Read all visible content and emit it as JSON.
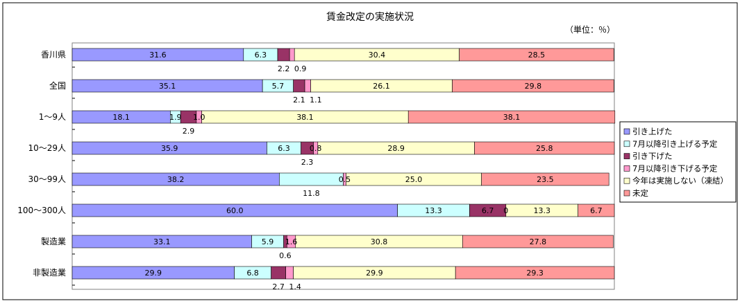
{
  "chart_data": {
    "type": "bar",
    "orientation": "horizontal",
    "stacked": true,
    "percent_stacked": true,
    "title": "賃金改定の実施状況",
    "unit_label": "（単位：％）",
    "xlim": [
      0,
      100
    ],
    "categories": [
      "香川県",
      "全国",
      "1～9人",
      "10～29人",
      "30～99人",
      "100～300人",
      "製造業",
      "非製造業"
    ],
    "series": [
      {
        "name": "引き上げた",
        "values": [
          31.6,
          35.1,
          18.1,
          35.9,
          38.2,
          60.0,
          33.1,
          29.9
        ]
      },
      {
        "name": "7月以降引き上げる予定",
        "values": [
          6.3,
          5.7,
          1.9,
          6.3,
          11.8,
          13.3,
          5.9,
          6.8
        ]
      },
      {
        "name": "引き下げた",
        "values": [
          2.2,
          2.1,
          2.9,
          2.3,
          0.0,
          6.7,
          0.6,
          2.7
        ]
      },
      {
        "name": "7月以降引き下げる予定",
        "values": [
          0.9,
          1.1,
          1.0,
          0.8,
          0.5,
          0.0,
          1.6,
          1.4
        ]
      },
      {
        "name": "今年は実施しない（凍結）",
        "values": [
          30.4,
          26.1,
          38.1,
          28.9,
          25.0,
          13.3,
          30.8,
          29.9
        ]
      },
      {
        "name": "未定",
        "values": [
          28.5,
          29.8,
          38.1,
          25.8,
          23.5,
          6.7,
          27.8,
          29.3
        ]
      }
    ],
    "data_labels": [
      [
        {
          "text": "31.6",
          "pos": "in"
        },
        {
          "text": "6.3",
          "pos": "in"
        },
        {
          "text": "2.2",
          "pos": "below"
        },
        {
          "text": "0.9",
          "pos": "below"
        },
        {
          "text": "30.4",
          "pos": "in"
        },
        {
          "text": "28.5",
          "pos": "in"
        }
      ],
      [
        {
          "text": "35.1",
          "pos": "in"
        },
        {
          "text": "5.7",
          "pos": "in"
        },
        {
          "text": "2.1",
          "pos": "below"
        },
        {
          "text": "1.1",
          "pos": "below"
        },
        {
          "text": "26.1",
          "pos": "in"
        },
        {
          "text": "29.8",
          "pos": "in"
        }
      ],
      [
        {
          "text": "18.1",
          "pos": "in"
        },
        {
          "text": "1.9",
          "pos": "in"
        },
        {
          "text": "2.9",
          "pos": "below"
        },
        {
          "text": "1.0",
          "pos": "in"
        },
        {
          "text": "38.1",
          "pos": "in"
        },
        {
          "text": "38.1",
          "pos": "in"
        }
      ],
      [
        {
          "text": "35.9",
          "pos": "in"
        },
        {
          "text": "6.3",
          "pos": "in"
        },
        {
          "text": "2.3",
          "pos": "below"
        },
        {
          "text": "0.8",
          "pos": "in"
        },
        {
          "text": "28.9",
          "pos": "in"
        },
        {
          "text": "25.8",
          "pos": "in"
        }
      ],
      [
        {
          "text": "38.2",
          "pos": "in"
        },
        {
          "text": "11.8",
          "pos": "below"
        },
        {
          "text": "",
          "pos": "none"
        },
        {
          "text": "0.5",
          "pos": "in"
        },
        {
          "text": "25.0",
          "pos": "in"
        },
        {
          "text": "23.5",
          "pos": "in"
        }
      ],
      [
        {
          "text": "60.0",
          "pos": "in"
        },
        {
          "text": "13.3",
          "pos": "in"
        },
        {
          "text": "6.7",
          "pos": "in"
        },
        {
          "text": "0",
          "pos": "in"
        },
        {
          "text": "13.3",
          "pos": "in"
        },
        {
          "text": "6.7",
          "pos": "in"
        }
      ],
      [
        {
          "text": "33.1",
          "pos": "in"
        },
        {
          "text": "5.9",
          "pos": "in"
        },
        {
          "text": "0.6",
          "pos": "below"
        },
        {
          "text": "1.6",
          "pos": "in"
        },
        {
          "text": "30.8",
          "pos": "in"
        },
        {
          "text": "27.8",
          "pos": "in"
        }
      ],
      [
        {
          "text": "29.9",
          "pos": "in"
        },
        {
          "text": "6.8",
          "pos": "in"
        },
        {
          "text": "2.7",
          "pos": "below"
        },
        {
          "text": "1.4",
          "pos": "below"
        },
        {
          "text": "29.9",
          "pos": "in"
        },
        {
          "text": "29.3",
          "pos": "in"
        }
      ]
    ],
    "colors": [
      "#9999ff",
      "#ccffff",
      "#993366",
      "#ff99cc",
      "#ffffcc",
      "#ff9999"
    ],
    "legend_position": "right",
    "grid": false
  }
}
